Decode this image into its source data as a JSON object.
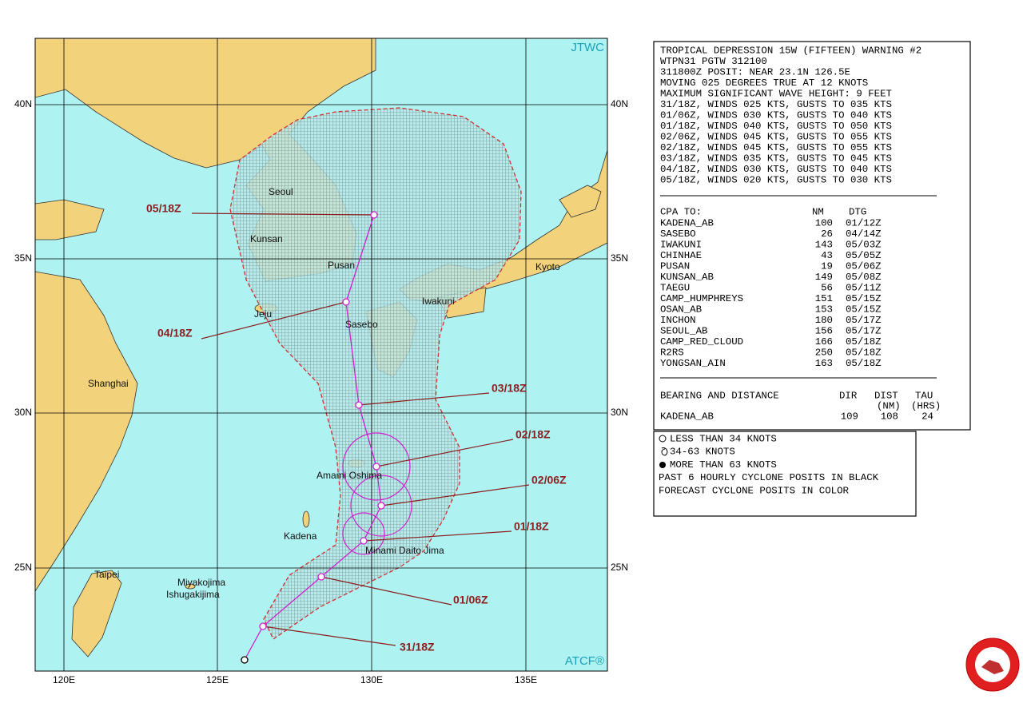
{
  "map": {
    "agency": "JTWC",
    "source": "ATCF®",
    "lat_labels": [
      "40N",
      "35N",
      "30N",
      "25N"
    ],
    "lon_labels": [
      "120E",
      "125E",
      "130E",
      "135E"
    ],
    "places": [
      "Seoul",
      "Kunsan",
      "Pusan",
      "Kyoto",
      "Iwakuni",
      "Sasebo",
      "Jeju",
      "Shanghai",
      "Amami Oshima",
      "Minami Daito Jima",
      "Kadena",
      "Taipei",
      "Miyakojima",
      "Ishugakijima"
    ],
    "forecast_times": [
      "05/18Z",
      "04/18Z",
      "03/18Z",
      "02/18Z",
      "02/06Z",
      "01/18Z",
      "01/06Z",
      "31/18Z"
    ]
  },
  "warning": {
    "lines": [
      "TROPICAL DEPRESSION 15W (FIFTEEN) WARNING #2",
      "WTPN31 PGTW 312100",
      "311800Z POSIT: NEAR 23.1N 126.5E",
      "MOVING 025 DEGREES TRUE AT 12 KNOTS",
      "MAXIMUM SIGNIFICANT WAVE HEIGHT: 9 FEET",
      "31/18Z, WINDS 025 KTS, GUSTS TO 035 KTS",
      "01/06Z, WINDS 030 KTS, GUSTS TO 040 KTS",
      "01/18Z, WINDS 040 KTS, GUSTS TO 050 KTS",
      "02/06Z, WINDS 045 KTS, GUSTS TO 055 KTS",
      "02/18Z, WINDS 045 KTS, GUSTS TO 055 KTS",
      "03/18Z, WINDS 035 KTS, GUSTS TO 045 KTS",
      "04/18Z, WINDS 030 KTS, GUSTS TO 040 KTS",
      "05/18Z, WINDS 020 KTS, GUSTS TO 030 KTS"
    ]
  },
  "cpa": {
    "title": "CPA TO:",
    "headers": [
      "NM",
      "DTG"
    ],
    "rows": [
      [
        "KADENA_AB",
        100,
        "01/12Z"
      ],
      [
        "SASEBO",
        26,
        "04/14Z"
      ],
      [
        "IWAKUNI",
        143,
        "05/03Z"
      ],
      [
        "CHINHAE",
        43,
        "05/05Z"
      ],
      [
        "PUSAN",
        19,
        "05/06Z"
      ],
      [
        "KUNSAN_AB",
        149,
        "05/08Z"
      ],
      [
        "TAEGU",
        56,
        "05/11Z"
      ],
      [
        "CAMP_HUMPHREYS",
        151,
        "05/15Z"
      ],
      [
        "OSAN_AB",
        153,
        "05/15Z"
      ],
      [
        "INCHON",
        180,
        "05/17Z"
      ],
      [
        "SEOUL_AB",
        156,
        "05/17Z"
      ],
      [
        "CAMP_RED_CLOUD",
        166,
        "05/18Z"
      ],
      [
        "R2RS",
        250,
        "05/18Z"
      ],
      [
        "YONGSAN_AIN",
        163,
        "05/18Z"
      ]
    ]
  },
  "bearing": {
    "title": "BEARING AND DISTANCE",
    "headers": [
      "DIR",
      "DIST",
      "TAU"
    ],
    "units": [
      "(NM)",
      "(HRS)"
    ],
    "rows": [
      [
        "KADENA_AB",
        109,
        108,
        24
      ]
    ]
  },
  "legend": {
    "items": [
      "LESS THAN 34 KNOTS",
      "34-63 KNOTS",
      "MORE THAN 63 KNOTS",
      "PAST 6 HOURLY CYCLONE POSITS IN BLACK",
      "FORECAST CYCLONE POSITS IN COLOR"
    ]
  }
}
